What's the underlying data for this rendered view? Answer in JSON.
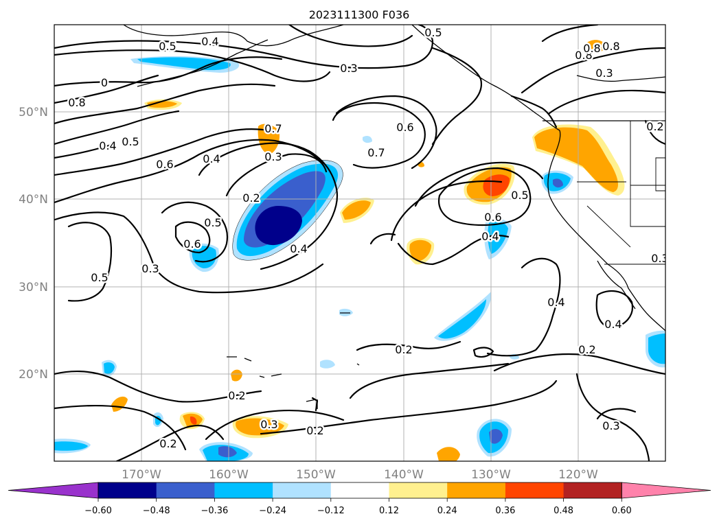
{
  "title": "2023111300 F036",
  "lat_labels": [
    "50°N",
    "40°N",
    "30°N",
    "20°N"
  ],
  "lon_labels": [
    "170°W",
    "160°W",
    "150°W",
    "140°W",
    "130°W",
    "120°W"
  ],
  "colorbar": {
    "ticks": [
      "−0.60",
      "−0.48",
      "−0.36",
      "−0.24",
      "−0.12",
      "0.12",
      "0.24",
      "0.36",
      "0.48",
      "0.60"
    ],
    "colors": [
      "#9932cc",
      "#00008b",
      "#3a5fcd",
      "#00bfff",
      "#b0e2ff",
      "#ffffff",
      "#fff08f",
      "#ffa500",
      "#ff4500",
      "#b22222",
      "#ff82ab"
    ]
  },
  "contour_labels": [
    "0.5",
    "0.4",
    "0.5",
    "0.3",
    "0.8",
    "0.8",
    "0.8",
    "0.3",
    "0",
    "0.8",
    "0.4",
    "0.5",
    "0.6",
    "0.4",
    "0.7",
    "0.3",
    "0.6",
    "0.7",
    "0.2",
    "0.5",
    "0.6",
    "0.4",
    "0.5",
    "0.6",
    "0.4",
    "0.3",
    "0.5",
    "0.2",
    "0.4",
    "0.4",
    "0.2",
    "0.2",
    "0.3",
    "0.2",
    "0.3",
    "0.2",
    "0.3"
  ],
  "colors": {
    "grid": "#b0b0b0",
    "axis_label": "#808080"
  }
}
